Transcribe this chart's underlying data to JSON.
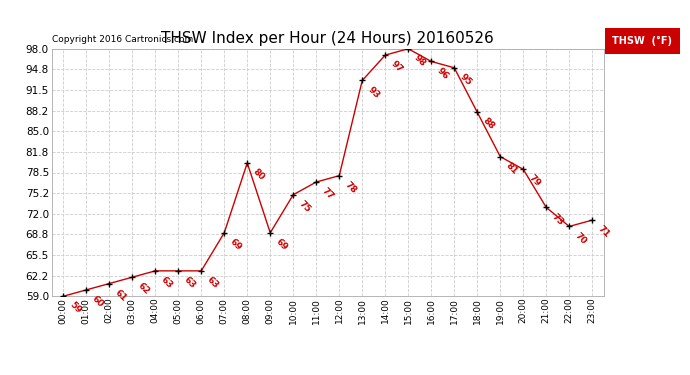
{
  "title": "THSW Index per Hour (24 Hours) 20160526",
  "copyright": "Copyright 2016 Cartronics.com",
  "legend_label": "THSW  (°F)",
  "hours": [
    "00:00",
    "01:00",
    "02:00",
    "03:00",
    "04:00",
    "05:00",
    "06:00",
    "07:00",
    "08:00",
    "09:00",
    "10:00",
    "11:00",
    "12:00",
    "13:00",
    "14:00",
    "15:00",
    "16:00",
    "17:00",
    "18:00",
    "19:00",
    "20:00",
    "21:00",
    "22:00",
    "23:00"
  ],
  "values": [
    59,
    60,
    61,
    62,
    63,
    63,
    63,
    69,
    80,
    69,
    75,
    77,
    78,
    93,
    97,
    98,
    96,
    95,
    88,
    81,
    79,
    73,
    70,
    71
  ],
  "line_color": "#cc0000",
  "marker_color": "#000000",
  "grid_color": "#cccccc",
  "background_color": "#ffffff",
  "ylim_min": 59.0,
  "ylim_max": 98.0,
  "yticks": [
    59.0,
    62.2,
    65.5,
    68.8,
    72.0,
    75.2,
    78.5,
    81.8,
    85.0,
    88.2,
    91.5,
    94.8,
    98.0
  ],
  "title_fontsize": 11,
  "annotation_fontsize": 6.5,
  "legend_bg": "#cc0000",
  "legend_text_color": "#ffffff",
  "legend_fontsize": 7
}
